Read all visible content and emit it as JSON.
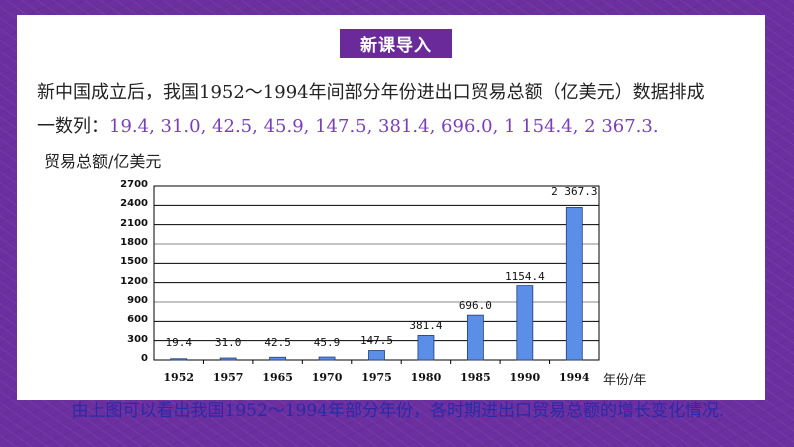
{
  "slide": {
    "badge": "新课导入",
    "intro_line1": "新中国成立后，我国1952～1994年间部分年份进出口贸易总额（亿美元）数据排成",
    "intro_line2_prefix": "一数列：",
    "intro_line2_sequence": "19.4, 31.0, 42.5, 45.9, 147.5, 381.4, 696.0, 1 154.4, 2 367.3.",
    "conclusion": "由上图可以看出我国1952～1994年部分年份，各时期进出口贸易总额的增长变化情况."
  },
  "colors": {
    "frame": "#6c2f9f",
    "badge": "#6a2a9a",
    "sequence_text": "#7a3fb8",
    "conclusion_text": "#2a2aa8",
    "bar": "#5b8ee6",
    "bar_border": "#1f3f7a"
  },
  "chart_data": {
    "type": "bar",
    "title": "",
    "ylabel": "贸易总额/亿美元",
    "xlabel": "年份/年",
    "categories": [
      "1952",
      "1957",
      "1965",
      "1970",
      "1975",
      "1980",
      "1985",
      "1990",
      "1994"
    ],
    "values": [
      19.4,
      31.0,
      42.5,
      45.9,
      147.5,
      381.4,
      696.0,
      1154.4,
      2367.3
    ],
    "data_labels": [
      "19.4",
      "31.0",
      "42.5",
      "45.9",
      "147.5",
      "381.4",
      "696.0",
      "1154.4",
      "2 367.3"
    ],
    "yticks": [
      0,
      300,
      600,
      900,
      1200,
      1500,
      1800,
      2100,
      2400,
      2700
    ],
    "ylim": [
      0,
      2700
    ],
    "grid": true,
    "legend": false
  }
}
